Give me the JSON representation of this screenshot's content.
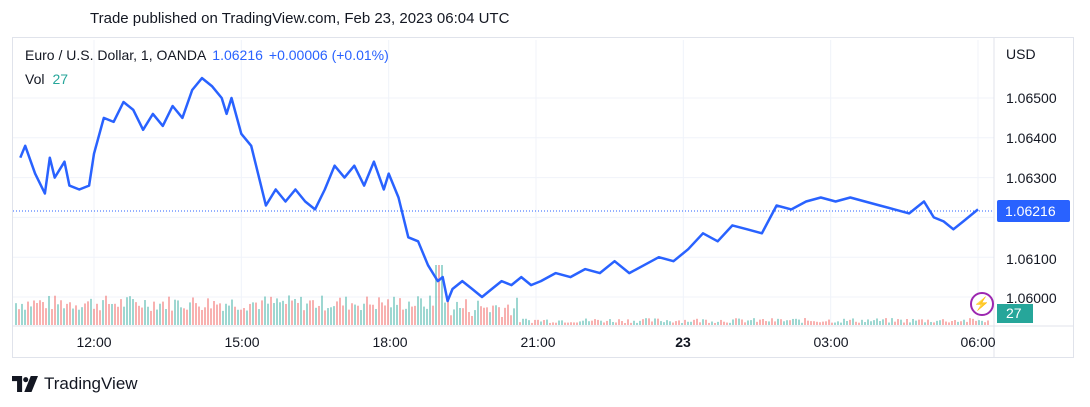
{
  "header": {
    "published": "Trade published on TradingView.com, Feb 23, 2023 06:04 UTC"
  },
  "legend": {
    "symbol": "Euro / U.S. Dollar, 1, OANDA",
    "price": "1.06216",
    "change": "+0.00006 (+0.01%)",
    "vol_label": "Vol",
    "vol_value": "27"
  },
  "axis": {
    "unit": "USD",
    "y_ticks": [
      "1.06500",
      "1.06400",
      "1.06300",
      "1.06100",
      "1.06000"
    ],
    "x_ticks": [
      "12:00",
      "15:00",
      "18:00",
      "21:00",
      "23",
      "03:00",
      "06:00"
    ],
    "last_price_badge": "1.06216",
    "last_volume_badge": "27"
  },
  "brand": {
    "name": "TradingView"
  },
  "colors": {
    "line": "#2962ff",
    "vol_up": "#26a69a",
    "vol_down": "#ef5350",
    "last_line": "#2962ff"
  },
  "chart_data": {
    "type": "line",
    "title": "Euro / U.S. Dollar, 1, OANDA",
    "ylabel": "USD",
    "ylim": [
      1.0595,
      1.0658
    ],
    "x_range_hours": [
      10.5,
      30.1
    ],
    "last_value": 1.06216,
    "series": [
      {
        "name": "Euro / U.S. Dollar",
        "x": [
          10.5,
          10.6,
          10.8,
          11.0,
          11.1,
          11.2,
          11.4,
          11.5,
          11.7,
          11.9,
          12.0,
          12.2,
          12.4,
          12.6,
          12.8,
          13.0,
          13.2,
          13.4,
          13.6,
          13.8,
          14.0,
          14.2,
          14.4,
          14.6,
          14.7,
          14.8,
          15.0,
          15.2,
          15.4,
          15.5,
          15.7,
          15.9,
          16.1,
          16.3,
          16.5,
          16.7,
          16.9,
          17.1,
          17.3,
          17.5,
          17.7,
          17.9,
          18.0,
          18.2,
          18.4,
          18.6,
          18.8,
          19.0,
          19.1,
          19.2,
          19.3,
          19.5,
          19.7,
          19.9,
          20.1,
          20.3,
          20.5,
          20.7,
          20.9,
          21.1,
          21.4,
          21.7,
          22.0,
          22.3,
          22.6,
          22.9,
          23.2,
          23.5,
          23.8,
          24.1,
          24.4,
          24.7,
          25.0,
          25.3,
          25.6,
          25.9,
          26.2,
          26.5,
          26.8,
          27.1,
          27.4,
          27.7,
          28.0,
          28.3,
          28.6,
          28.9,
          29.1,
          29.3,
          29.5,
          29.7,
          29.9,
          30.0
        ],
        "values": [
          1.0635,
          1.0638,
          1.0631,
          1.0626,
          1.0635,
          1.063,
          1.0634,
          1.0628,
          1.0627,
          1.0628,
          1.0636,
          1.0645,
          1.0644,
          1.0649,
          1.0647,
          1.0642,
          1.0646,
          1.0643,
          1.0648,
          1.0645,
          1.0652,
          1.0655,
          1.0653,
          1.065,
          1.0646,
          1.065,
          1.0641,
          1.0638,
          1.0628,
          1.0623,
          1.0627,
          1.0624,
          1.0627,
          1.0624,
          1.0622,
          1.0627,
          1.0633,
          1.063,
          1.0633,
          1.0628,
          1.0634,
          1.0627,
          1.0631,
          1.0625,
          1.0615,
          1.0614,
          1.0608,
          1.0604,
          1.0605,
          1.0599,
          1.0602,
          1.0604,
          1.0602,
          1.06,
          1.0602,
          1.0604,
          1.0603,
          1.0605,
          1.0603,
          1.0604,
          1.0606,
          1.0605,
          1.0607,
          1.0606,
          1.0609,
          1.0606,
          1.0608,
          1.061,
          1.0609,
          1.0612,
          1.0616,
          1.0614,
          1.0618,
          1.0617,
          1.0616,
          1.0623,
          1.0622,
          1.0624,
          1.0625,
          1.0624,
          1.0625,
          1.0624,
          1.0623,
          1.0622,
          1.0621,
          1.0624,
          1.062,
          1.0619,
          1.0617,
          1.0619,
          1.0621,
          1.0622
        ]
      }
    ]
  }
}
